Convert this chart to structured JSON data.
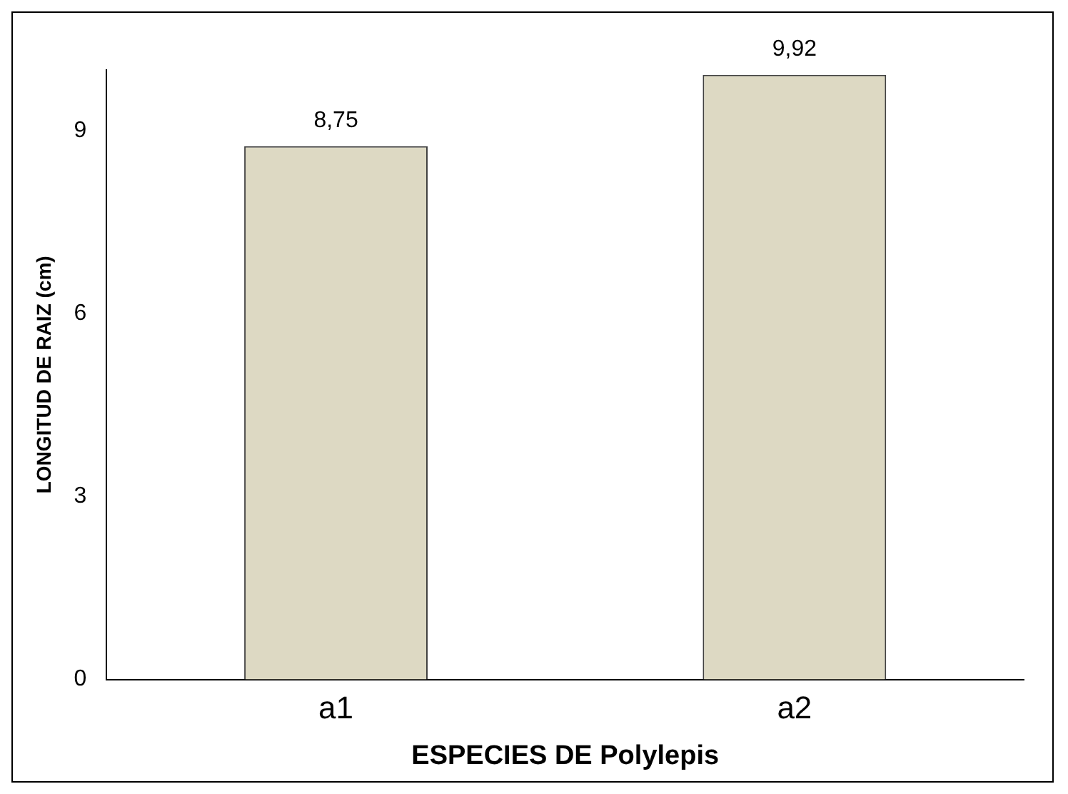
{
  "chart_data": {
    "type": "bar",
    "xlabel": "ESPECIES DE Polylepis",
    "ylabel": "LONGITUD DE RAIZ (cm)",
    "categories": [
      "a1",
      "a2"
    ],
    "values": [
      8.75,
      9.92
    ],
    "value_labels": [
      "8,75",
      "9,92"
    ],
    "color": "#ddd9c3",
    "ylim": [
      0,
      10
    ],
    "yticks": [
      0,
      3,
      6,
      9
    ],
    "grid": false,
    "legend": false
  }
}
